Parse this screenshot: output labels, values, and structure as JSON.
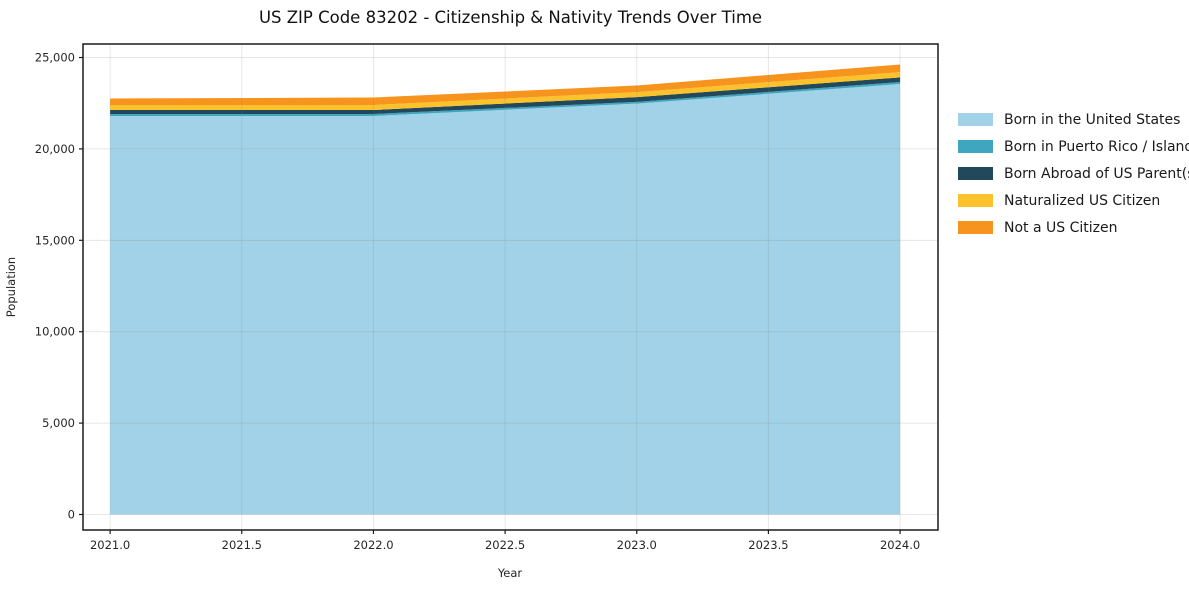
{
  "chart_data": {
    "type": "area",
    "stacked": true,
    "title": "US ZIP Code 83202 - Citizenship & Nativity Trends Over Time",
    "xlabel": "Year",
    "ylabel": "Population",
    "x": [
      2021,
      2022,
      2023,
      2024
    ],
    "series": [
      {
        "name": "Born in the United States",
        "color": "#A1D2E8",
        "values": [
          21800,
          21800,
          22480,
          23550
        ]
      },
      {
        "name": "Born in Puerto Rico / Islands",
        "color": "#3FA6C0",
        "values": [
          110,
          110,
          95,
          110
        ]
      },
      {
        "name": "Born Abroad of US Parent(s)",
        "color": "#22485C",
        "values": [
          220,
          220,
          260,
          255
        ]
      },
      {
        "name": "Naturalized US Citizen",
        "color": "#FCC22C",
        "values": [
          275,
          275,
          275,
          290
        ]
      },
      {
        "name": "Not a US Citizen",
        "color": "#F6941E",
        "values": [
          355,
          410,
          360,
          415
        ]
      }
    ],
    "totals": [
      22760,
      22815,
      23470,
      24620
    ],
    "xlim": [
      2020.897,
      2024.144
    ],
    "ylim": [
      -848,
      25740
    ],
    "xticks": {
      "values": [
        2021.0,
        2021.5,
        2022.0,
        2022.5,
        2023.0,
        2023.5,
        2024.0
      ],
      "labels": [
        "2021.0",
        "2021.5",
        "2022.0",
        "2022.5",
        "2023.0",
        "2023.5",
        "2024.0"
      ]
    },
    "yticks": {
      "values": [
        0,
        5000,
        10000,
        15000,
        20000,
        25000
      ],
      "labels": [
        "0",
        "5,000",
        "10,000",
        "15,000",
        "20,000",
        "25,000"
      ]
    },
    "grid": true,
    "legend_position": "right"
  },
  "style_colors": {
    "spine": "#1a1a1a",
    "grid": "rgba(120,120,120,0.18)",
    "background": "#ffffff"
  }
}
